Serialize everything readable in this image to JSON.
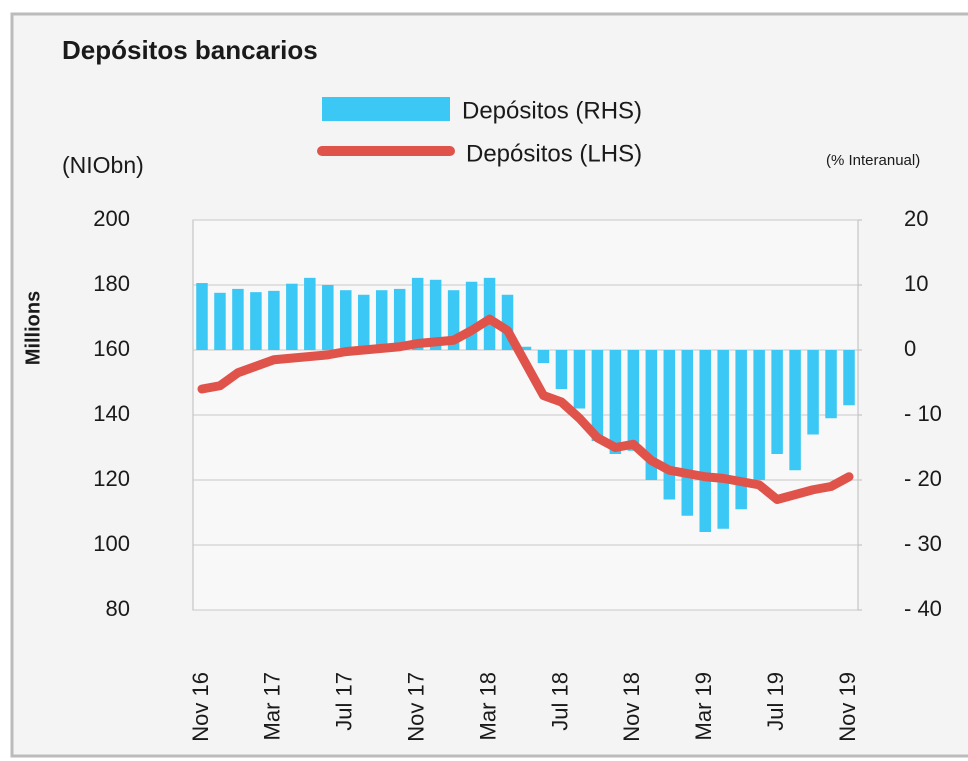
{
  "chart_data": {
    "type": "bar-line",
    "title": "Depósitos bancarios",
    "y_label": "Millions",
    "y_unit": "(NIObn)",
    "y2_unit": "(% Interanual)",
    "categories": [
      "Nov 16",
      null,
      null,
      null,
      "Mar 17",
      null,
      null,
      null,
      "Jul 17",
      null,
      null,
      null,
      "Nov 17",
      null,
      null,
      null,
      "Mar 18",
      null,
      null,
      null,
      "Jul 18",
      null,
      null,
      null,
      "Nov 18",
      null,
      null,
      null,
      "Mar 19",
      null,
      null,
      null,
      "Jul 19",
      null,
      null,
      null,
      "Nov 19"
    ],
    "series": [
      {
        "name": "Depósitos (RHS)",
        "type": "bar",
        "axis": "y2",
        "color": "#3cc8f4",
        "values": [
          10.3,
          8.8,
          9.4,
          8.9,
          9.1,
          10.2,
          11.1,
          10,
          9.2,
          8.5,
          9.2,
          9.4,
          11.1,
          10.8,
          9.2,
          10.5,
          11.1,
          8.5,
          0.5,
          -2,
          -6,
          -9,
          -14,
          -16,
          -15.5,
          -20,
          -23,
          -25.5,
          -28,
          -27.5,
          -24.5,
          -20,
          -16,
          -18.5,
          -13,
          -10.5,
          -8.5
        ]
      },
      {
        "name": "Depósitos (LHS)",
        "type": "line",
        "axis": "y",
        "color": "#e0534b",
        "values": [
          148,
          149,
          153,
          155,
          157,
          157.5,
          158,
          158.5,
          159.5,
          160,
          160.5,
          161,
          162,
          162.5,
          163,
          166,
          169.5,
          166,
          156,
          146,
          144,
          139,
          133,
          130,
          131,
          126,
          123,
          122,
          121,
          120.5,
          119.5,
          118.5,
          114,
          115.5,
          117,
          118,
          121
        ]
      }
    ],
    "ylim": [
      80,
      200
    ],
    "yticks": [
      80,
      100,
      120,
      140,
      160,
      180,
      200
    ],
    "y2lim": [
      -40,
      20
    ],
    "y2ticks": [
      {
        "value": -40,
        "label": "- 40"
      },
      {
        "value": -30,
        "label": "- 30"
      },
      {
        "value": -20,
        "label": "- 20"
      },
      {
        "value": -10,
        "label": "- 10"
      },
      0,
      10,
      20
    ],
    "grid": true
  }
}
